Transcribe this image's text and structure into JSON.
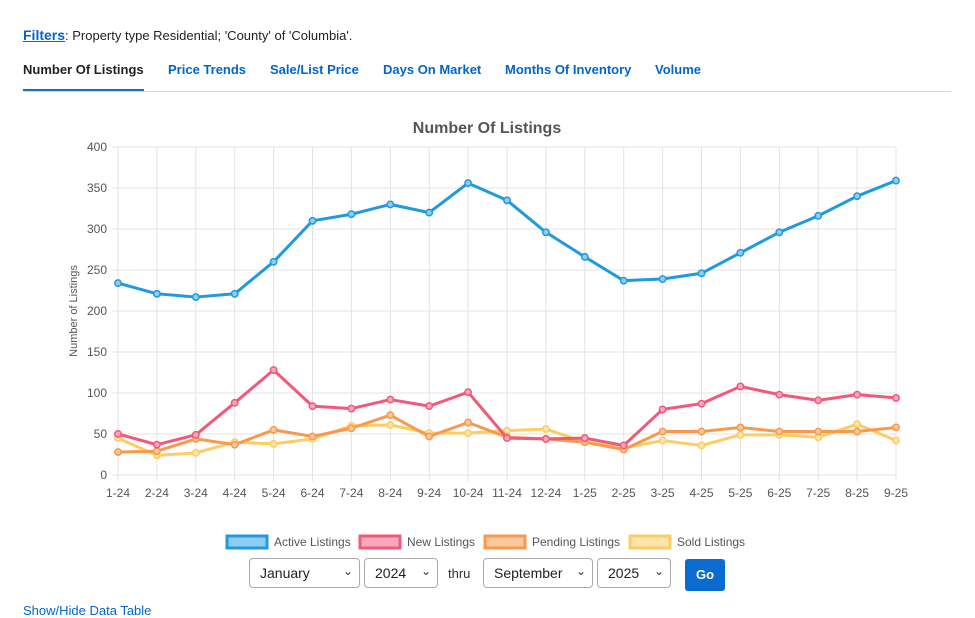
{
  "filters": {
    "link_label": "Filters",
    "text": ": Property type Residential; 'County' of 'Columbia'."
  },
  "tabs": [
    {
      "label": "Number Of Listings",
      "active": true
    },
    {
      "label": "Price Trends",
      "active": false
    },
    {
      "label": "Sale/List Price",
      "active": false
    },
    {
      "label": "Days On Market",
      "active": false
    },
    {
      "label": "Months Of Inventory",
      "active": false
    },
    {
      "label": "Volume",
      "active": false
    }
  ],
  "chart_data": {
    "type": "line",
    "title": "Number Of Listings",
    "xlabel": "",
    "ylabel": "Number of Listings",
    "ylim": [
      0,
      400
    ],
    "yticks": [
      0,
      50,
      100,
      150,
      200,
      250,
      300,
      350,
      400
    ],
    "grid": true,
    "legend_position": "bottom",
    "categories": [
      "1-24",
      "2-24",
      "3-24",
      "4-24",
      "5-24",
      "6-24",
      "7-24",
      "8-24",
      "9-24",
      "10-24",
      "11-24",
      "12-24",
      "1-25",
      "2-25",
      "3-25",
      "4-25",
      "5-25",
      "6-25",
      "7-25",
      "8-25",
      "9-25"
    ],
    "series": [
      {
        "name": "Active Listings",
        "color": "#1f9ae0",
        "fill": "#8fcdf2",
        "values": [
          234,
          221,
          217,
          221,
          260,
          310,
          318,
          330,
          320,
          356,
          335,
          296,
          266,
          237,
          239,
          246,
          271,
          296,
          316,
          340,
          359
        ]
      },
      {
        "name": "New Listings",
        "color": "#f2587a",
        "fill": "#f9a9bb",
        "values": [
          50,
          37,
          49,
          88,
          128,
          84,
          81,
          92,
          84,
          101,
          45,
          44,
          45,
          36,
          80,
          87,
          108,
          98,
          91,
          98,
          94
        ]
      },
      {
        "name": "Pending Listings",
        "color": "#f8994c",
        "fill": "#fbc79c",
        "values": [
          28,
          29,
          44,
          37,
          55,
          47,
          57,
          73,
          47,
          64,
          46,
          44,
          40,
          31,
          53,
          53,
          58,
          53,
          53,
          53,
          58
        ]
      },
      {
        "name": "Sold Listings",
        "color": "#fbcd64",
        "fill": "#fde4aa",
        "values": [
          45,
          24,
          27,
          40,
          38,
          44,
          60,
          61,
          51,
          51,
          54,
          56,
          40,
          33,
          42,
          36,
          49,
          49,
          46,
          62,
          42
        ]
      }
    ]
  },
  "controls": {
    "start_month": "January",
    "start_year": "2024",
    "thru_label": "thru",
    "end_month": "September",
    "end_year": "2025",
    "go_label": "Go"
  },
  "bottom_link": "Show/Hide Data Table"
}
